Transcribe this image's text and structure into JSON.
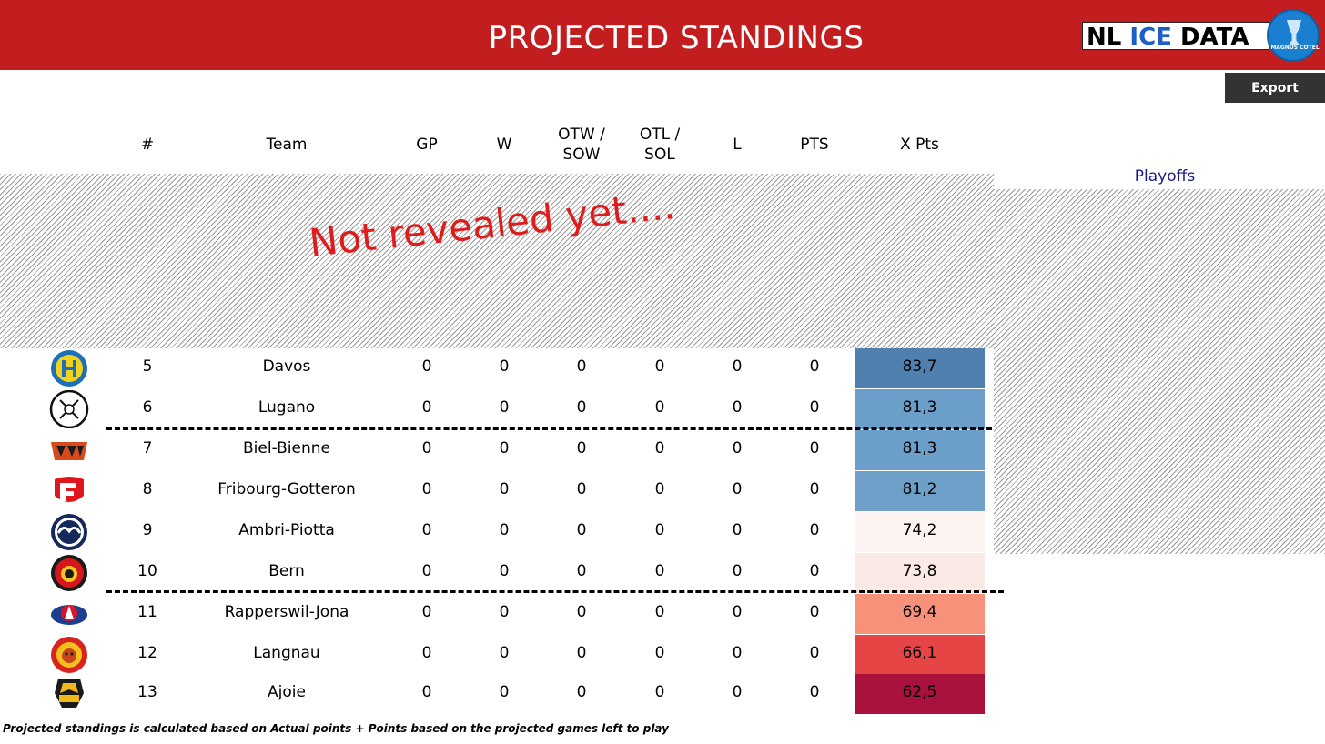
{
  "header": {
    "title": "PROJECTED STANDINGS",
    "brand": {
      "nl": "NL",
      "ice": "ICE",
      "data": "DATA",
      "badge": "MAGNUS COTEL",
      "badge_color": "#1a7fd0",
      "bar_color": "#c21e20"
    }
  },
  "toolbar": {
    "export_label": "Export"
  },
  "columns": {
    "rank": "#",
    "team": "Team",
    "gp": "GP",
    "w": "W",
    "otw_line1": "OTW /",
    "otw_line2": "SOW",
    "otl_line1": "OTL /",
    "otl_line2": "SOL",
    "l": "L",
    "pts": "PTS",
    "xpts": "X Pts"
  },
  "hidden_overlay": {
    "text": "Not revealed yet...."
  },
  "side_panel": {
    "label": "Playoffs"
  },
  "rows": [
    {
      "rank": "5",
      "team": "Davos",
      "gp": "0",
      "w": "0",
      "otw": "0",
      "otl": "0",
      "l": "0",
      "pts": "0",
      "xpts": "83,7",
      "xpts_color": "#5080b0",
      "logo": "davos-logo"
    },
    {
      "rank": "6",
      "team": "Lugano",
      "gp": "0",
      "w": "0",
      "otw": "0",
      "otl": "0",
      "l": "0",
      "pts": "0",
      "xpts": "81,3",
      "xpts_color": "#6b9ec8",
      "logo": "lugano-logo"
    },
    {
      "rank": "7",
      "team": "Biel-Bienne",
      "gp": "0",
      "w": "0",
      "otw": "0",
      "otl": "0",
      "l": "0",
      "pts": "0",
      "xpts": "81,3",
      "xpts_color": "#6b9ec8",
      "logo": "biel-logo"
    },
    {
      "rank": "8",
      "team": "Fribourg-Gotteron",
      "gp": "0",
      "w": "0",
      "otw": "0",
      "otl": "0",
      "l": "0",
      "pts": "0",
      "xpts": "81,2",
      "xpts_color": "#6d9fc8",
      "logo": "fribourg-logo"
    },
    {
      "rank": "9",
      "team": "Ambri-Piotta",
      "gp": "0",
      "w": "0",
      "otw": "0",
      "otl": "0",
      "l": "0",
      "pts": "0",
      "xpts": "74,2",
      "xpts_color": "#fdf3f1",
      "logo": "ambri-logo"
    },
    {
      "rank": "10",
      "team": "Bern",
      "gp": "0",
      "w": "0",
      "otw": "0",
      "otl": "0",
      "l": "0",
      "pts": "0",
      "xpts": "73,8",
      "xpts_color": "#fbe9e6",
      "logo": "bern-logo"
    },
    {
      "rank": "11",
      "team": "Rapperswil-Jona",
      "gp": "0",
      "w": "0",
      "otw": "0",
      "otl": "0",
      "l": "0",
      "pts": "0",
      "xpts": "69,4",
      "xpts_color": "#f7917a",
      "logo": "rapperswil-logo"
    },
    {
      "rank": "12",
      "team": "Langnau",
      "gp": "0",
      "w": "0",
      "otw": "0",
      "otl": "0",
      "l": "0",
      "pts": "0",
      "xpts": "66,1",
      "xpts_color": "#e54545",
      "logo": "langnau-logo"
    },
    {
      "rank": "13",
      "team": "Ajoie",
      "gp": "0",
      "w": "0",
      "otw": "0",
      "otl": "0",
      "l": "0",
      "pts": "0",
      "xpts": "62,5",
      "xpts_color": "#a8123c",
      "logo": "ajoie-logo"
    }
  ],
  "footnote": "Projected standings is calculated based on Actual points + Points based on the projected games left to play"
}
